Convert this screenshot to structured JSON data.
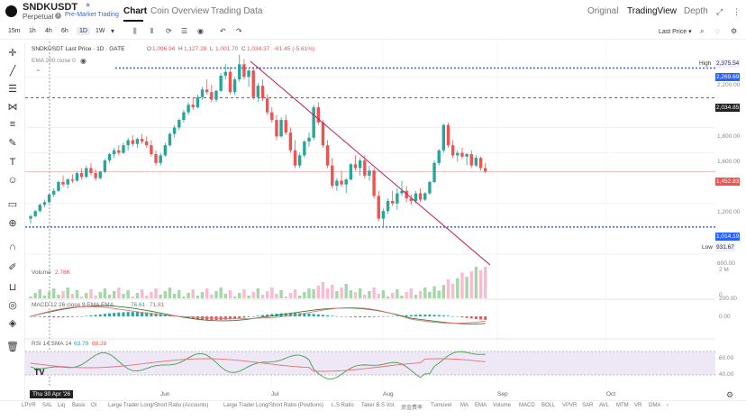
{
  "header": {
    "symbol": "SNDKUSDT",
    "star": "★",
    "sub_label": "Perpetual",
    "info_icon": "i",
    "premarket": "Pre-Market Trading",
    "tabs": [
      "Chart",
      "Coin Overview",
      "Trading Data"
    ],
    "right_tabs": [
      "Original",
      "TradingView",
      "Depth"
    ],
    "expand_icon": "⤢",
    "more_icon": "⋮"
  },
  "toolbar": {
    "timeframes": [
      "15m",
      "1h",
      "4h",
      "6h",
      "1D",
      "1W"
    ],
    "active_timeframe": "1D",
    "dropdown_icon": "▾",
    "tool_icons": [
      "⫼",
      "⫴",
      "⟳",
      "☰",
      "◉",
      "↶",
      "↷"
    ],
    "price_source": "Last Price ▾",
    "right_icons": [
      "⌕",
      "◌",
      "⚙"
    ]
  },
  "legend": {
    "title": "SNDKUSDT Last Price · 1D · GATE",
    "o_label": "O",
    "o": "1,096.94",
    "h_label": "H",
    "h": "1,127.28",
    "l_label": "L",
    "l": "1,001.70",
    "c_label": "C",
    "c": "1,034.37",
    "change": "-61.45 (-5.61%)",
    "ema": "EMA 200 close 0",
    "volume_label": "Volume",
    "volume_value": "2.78K",
    "macd_label": "MACD 12 26 close 9 EMA EMA",
    "macd_v1": "76.61",
    "macd_v2": "71.81",
    "rsi_label": "RSI 14 SMA 14",
    "rsi_v1": "63.79",
    "rsi_v2": "68.28"
  },
  "price_axis": {
    "high_label": "High",
    "high": "2,375.54",
    "line1": "2,269.69",
    "ticks": [
      "2,200.00",
      "2,034.85",
      "1,800.00",
      "1,600.00",
      "1,452.83",
      "1,200.00",
      "1,014.19",
      "800.00"
    ],
    "low_label": "Low",
    "low": "931.67",
    "vol_ticks": [
      "2 M",
      "0"
    ],
    "macd_ticks": [
      "200.00",
      "0.00"
    ],
    "rsi_ticks": [
      "60.00",
      "40.00"
    ]
  },
  "x_axis": {
    "badge": "Thu 30 Apr '26",
    "labels": [
      "Jun",
      "Jul",
      "Aug",
      "Sep",
      "Oct"
    ]
  },
  "bottom_bar": [
    "LPVR",
    "SAL",
    "Liq",
    "Basis",
    "OI",
    "Large Trader Long/Short Ratio (Accounts)",
    "Large Trader Long/Short Ratio (Positions)",
    "L.S Ratio",
    "Taker B.S Vol.",
    "资金费率",
    "Turnover",
    "MA",
    "EMA",
    "Volume",
    "MACD",
    "BOLL",
    "VPVR",
    "SAR",
    "AVL",
    "MTM",
    "VR",
    "DMA",
    "›"
  ],
  "colors": {
    "up": "#26a69a",
    "down": "#ef5350",
    "trendline": "#c2185b",
    "blue_dotted": "#2962ff",
    "rsi_band": "#ede7f6"
  },
  "chart_data": {
    "type": "candlestick",
    "candles": [
      [
        1080,
        1110,
        1040,
        1100
      ],
      [
        1100,
        1150,
        1090,
        1140
      ],
      [
        1140,
        1200,
        1130,
        1190
      ],
      [
        1190,
        1230,
        1170,
        1210
      ],
      [
        1210,
        1280,
        1200,
        1270
      ],
      [
        1270,
        1320,
        1250,
        1300
      ],
      [
        1300,
        1380,
        1290,
        1370
      ],
      [
        1370,
        1420,
        1330,
        1350
      ],
      [
        1350,
        1400,
        1320,
        1390
      ],
      [
        1390,
        1430,
        1360,
        1380
      ],
      [
        1380,
        1450,
        1370,
        1440
      ],
      [
        1440,
        1480,
        1390,
        1410
      ],
      [
        1410,
        1500,
        1400,
        1480
      ],
      [
        1480,
        1520,
        1420,
        1440
      ],
      [
        1440,
        1470,
        1380,
        1400
      ],
      [
        1400,
        1460,
        1390,
        1450
      ],
      [
        1450,
        1550,
        1440,
        1540
      ],
      [
        1540,
        1600,
        1520,
        1590
      ],
      [
        1590,
        1640,
        1560,
        1620
      ],
      [
        1620,
        1660,
        1580,
        1600
      ],
      [
        1600,
        1680,
        1590,
        1660
      ],
      [
        1660,
        1720,
        1620,
        1700
      ],
      [
        1700,
        1740,
        1650,
        1670
      ],
      [
        1670,
        1720,
        1640,
        1710
      ],
      [
        1710,
        1750,
        1670,
        1690
      ],
      [
        1690,
        1730,
        1640,
        1660
      ],
      [
        1660,
        1700,
        1570,
        1590
      ],
      [
        1590,
        1620,
        1500,
        1520
      ],
      [
        1520,
        1600,
        1500,
        1580
      ],
      [
        1580,
        1680,
        1570,
        1660
      ],
      [
        1660,
        1760,
        1650,
        1750
      ],
      [
        1750,
        1820,
        1720,
        1800
      ],
      [
        1800,
        1870,
        1780,
        1860
      ],
      [
        1860,
        1940,
        1840,
        1920
      ],
      [
        1920,
        2000,
        1900,
        1980
      ],
      [
        1980,
        2040,
        1940,
        1960
      ],
      [
        1960,
        2060,
        1950,
        2040
      ],
      [
        2040,
        2120,
        2020,
        2100
      ],
      [
        2100,
        2180,
        2060,
        2080
      ],
      [
        2080,
        2140,
        2000,
        2020
      ],
      [
        2020,
        2100,
        2000,
        2090
      ],
      [
        2090,
        2230,
        2080,
        2210
      ],
      [
        2210,
        2300,
        2180,
        2240
      ],
      [
        2240,
        2280,
        2060,
        2080
      ],
      [
        2080,
        2200,
        2060,
        2180
      ],
      [
        2180,
        2376,
        2160,
        2300
      ],
      [
        2300,
        2340,
        2180,
        2200
      ],
      [
        2200,
        2260,
        2120,
        2250
      ],
      [
        2250,
        2280,
        2020,
        2040
      ],
      [
        2040,
        2150,
        2000,
        2130
      ],
      [
        2130,
        2180,
        2010,
        2030
      ],
      [
        2030,
        2060,
        1900,
        1920
      ],
      [
        1920,
        1960,
        1840,
        1860
      ],
      [
        1860,
        1900,
        1700,
        1730
      ],
      [
        1730,
        1880,
        1720,
        1860
      ],
      [
        1860,
        1900,
        1740,
        1760
      ],
      [
        1760,
        1800,
        1600,
        1620
      ],
      [
        1620,
        1700,
        1480,
        1500
      ],
      [
        1500,
        1600,
        1480,
        1580
      ],
      [
        1580,
        1700,
        1560,
        1690
      ],
      [
        1690,
        1760,
        1650,
        1720
      ],
      [
        1720,
        1980,
        1700,
        1960
      ],
      [
        1960,
        2000,
        1820,
        1840
      ],
      [
        1840,
        1860,
        1640,
        1660
      ],
      [
        1660,
        1700,
        1480,
        1500
      ],
      [
        1500,
        1560,
        1320,
        1340
      ],
      [
        1340,
        1400,
        1300,
        1380
      ],
      [
        1380,
        1460,
        1330,
        1350
      ],
      [
        1350,
        1400,
        1280,
        1390
      ],
      [
        1390,
        1520,
        1380,
        1510
      ],
      [
        1510,
        1580,
        1460,
        1480
      ],
      [
        1480,
        1560,
        1420,
        1540
      ],
      [
        1540,
        1580,
        1400,
        1420
      ],
      [
        1420,
        1500,
        1380,
        1460
      ],
      [
        1460,
        1480,
        1240,
        1260
      ],
      [
        1260,
        1300,
        1060,
        1080
      ],
      [
        1080,
        1160,
        1014,
        1140
      ],
      [
        1140,
        1240,
        1120,
        1220
      ],
      [
        1220,
        1300,
        1180,
        1200
      ],
      [
        1200,
        1320,
        1150,
        1280
      ],
      [
        1280,
        1380,
        1260,
        1300
      ],
      [
        1300,
        1340,
        1210,
        1240
      ],
      [
        1240,
        1270,
        1190,
        1220
      ],
      [
        1220,
        1300,
        1200,
        1280
      ],
      [
        1280,
        1320,
        1210,
        1230
      ],
      [
        1230,
        1290,
        1220,
        1280
      ],
      [
        1280,
        1380,
        1270,
        1370
      ],
      [
        1370,
        1540,
        1360,
        1520
      ],
      [
        1520,
        1630,
        1500,
        1620
      ],
      [
        1620,
        1830,
        1600,
        1820
      ],
      [
        1820,
        1840,
        1640,
        1660
      ],
      [
        1660,
        1700,
        1560,
        1580
      ],
      [
        1580,
        1620,
        1530,
        1600
      ],
      [
        1600,
        1640,
        1550,
        1570
      ],
      [
        1570,
        1600,
        1500,
        1590
      ],
      [
        1590,
        1620,
        1480,
        1500
      ],
      [
        1500,
        1580,
        1490,
        1560
      ],
      [
        1560,
        1570,
        1460,
        1480
      ],
      [
        1480,
        1520,
        1440,
        1453
      ]
    ],
    "volume_max": 2.8,
    "macd_range": [
      -200,
      250
    ],
    "rsi_range": [
      20,
      80
    ]
  }
}
